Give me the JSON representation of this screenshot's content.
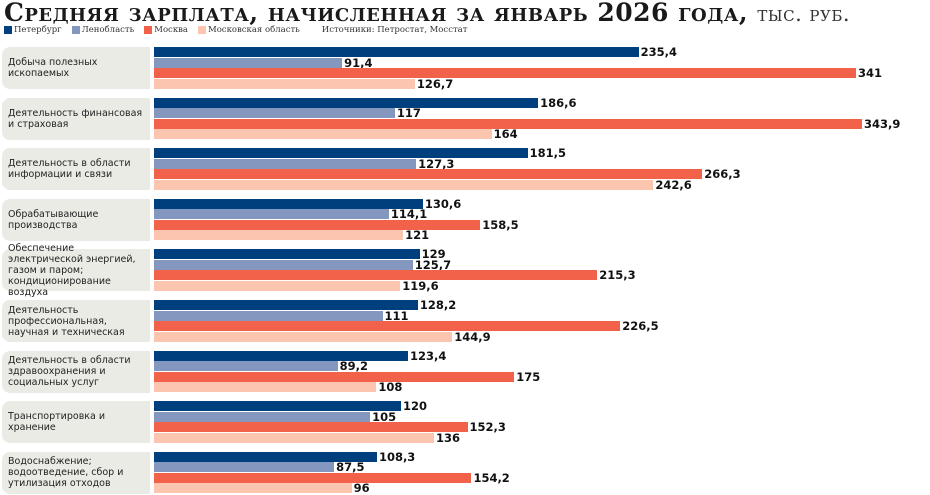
{
  "title": "Средняя зарплата, начисленная за январь 2026 года,",
  "unit": "тыс. руб.",
  "source": "Источники: Петростат, Мосстат",
  "chart_data": {
    "type": "bar",
    "orientation": "horizontal",
    "title": "Средняя зарплата, начисленная за январь 2026 года, тыс. руб.",
    "categories": [
      "Добыча полезных ископаемых",
      "Деятельность финансовая и страховая",
      "Деятельность в области информации и связи",
      "Обрабатывающие производства",
      "Обеспечение электрической энергией, газом и паром; кондиционирование воздуха",
      "Деятельность профессиональная, научная и техническая",
      "Деятельность в области здравоохранения и социальных услуг",
      "Транспортировка и хранение",
      "Водоснабжение; водоотведение, сбор и утилизация отходов"
    ],
    "series": [
      {
        "name": "Петербург",
        "color": "#003f7d",
        "values": [
          235.4,
          186.6,
          181.5,
          130.6,
          129,
          128.2,
          123.4,
          120,
          108.3
        ],
        "labels": [
          "235,4",
          "186,6",
          "181,5",
          "130,6",
          "129",
          "128,2",
          "123,4",
          "120",
          "108,3"
        ]
      },
      {
        "name": "Ленобласть",
        "color": "#8497bf",
        "values": [
          91.4,
          117,
          127.3,
          114.1,
          125.7,
          111,
          89.2,
          105,
          87.5
        ],
        "labels": [
          "91,4",
          "117",
          "127,3",
          "114,1",
          "125,7",
          "111",
          "89,2",
          "105",
          "87,5"
        ]
      },
      {
        "name": "Москва",
        "color": "#f2614a",
        "values": [
          341,
          343.9,
          266.3,
          158.5,
          215.3,
          226.5,
          175,
          152.3,
          154.2
        ],
        "labels": [
          "341",
          "343,9",
          "266,3",
          "158,5",
          "215,3",
          "226,5",
          "175",
          "152,3",
          "154,2"
        ]
      },
      {
        "name": "Московская область",
        "color": "#fbc5b0",
        "values": [
          126.7,
          164,
          242.6,
          121,
          119.6,
          144.9,
          108,
          136,
          96
        ],
        "labels": [
          "126,7",
          "164",
          "242,6",
          "121",
          "119,6",
          "144,9",
          "108",
          "136",
          "96"
        ]
      }
    ],
    "xlim": [
      0,
      350
    ],
    "grid": false,
    "legend": "top-left"
  }
}
